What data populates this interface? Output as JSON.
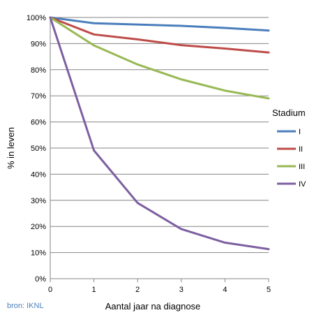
{
  "chart_data": {
    "type": "line",
    "title": "",
    "xlabel": "Aantal jaar na diagnose",
    "ylabel": "% in leven",
    "x": [
      0,
      1,
      2,
      3,
      4,
      5
    ],
    "xlim": [
      0,
      5
    ],
    "ylim": [
      0,
      100
    ],
    "x_ticks": [
      "0",
      "1",
      "2",
      "3",
      "4",
      "5"
    ],
    "y_ticks": [
      "0%",
      "10%",
      "20%",
      "30%",
      "40%",
      "50%",
      "60%",
      "70%",
      "80%",
      "90%",
      "100%"
    ],
    "grid": "horizontal",
    "legend": {
      "title": "Stadium",
      "position": "right"
    },
    "series": [
      {
        "name": "I",
        "color": "#4a7ebb",
        "values": [
          100,
          97.8,
          97.3,
          96.8,
          96.0,
          95.0
        ]
      },
      {
        "name": "II",
        "color": "#be4b48",
        "values": [
          100,
          93.5,
          91.6,
          89.4,
          88.1,
          86.6
        ]
      },
      {
        "name": "III",
        "color": "#98b954",
        "values": [
          100,
          89.3,
          82.0,
          76.3,
          72.0,
          69.0
        ]
      },
      {
        "name": "IV",
        "color": "#7d5fa0",
        "values": [
          100,
          49.1,
          29.0,
          19.0,
          13.8,
          11.3
        ]
      }
    ]
  },
  "source_note": "bron: IKNL"
}
